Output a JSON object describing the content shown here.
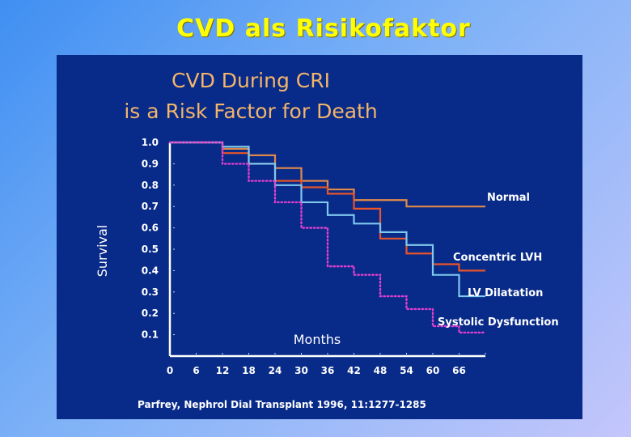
{
  "slide": {
    "title": "CVD als Risikofaktor"
  },
  "chart_data": {
    "type": "line",
    "title_lines": [
      "CVD During CRI",
      "is a Risk Factor for Death"
    ],
    "xlabel": "Months",
    "ylabel": "Survival",
    "x_ticks": [
      0,
      6,
      12,
      18,
      24,
      30,
      36,
      42,
      48,
      54,
      60,
      66
    ],
    "y_ticks": [
      "1.0",
      "0.9",
      "0.8",
      "0.7",
      "0.6",
      "0.5",
      "0.4",
      "0.3",
      "0.2",
      "0.1"
    ],
    "xlim": [
      0,
      72
    ],
    "ylim": [
      0,
      1.0
    ],
    "grid": false,
    "source": "Parfrey, Nephrol Dial Transplant 1996, 11:1277-1285",
    "series": [
      {
        "name": "Normal",
        "color": "#e08a4a",
        "style": "solid",
        "x": [
          0,
          12,
          18,
          24,
          30,
          36,
          42,
          54,
          72
        ],
        "y": [
          1.0,
          0.97,
          0.94,
          0.88,
          0.82,
          0.78,
          0.73,
          0.7,
          0.7
        ]
      },
      {
        "name": "Concentric LVH",
        "color": "#e8552a",
        "style": "solid",
        "x": [
          0,
          12,
          18,
          24,
          30,
          36,
          42,
          48,
          54,
          60,
          66,
          72
        ],
        "y": [
          1.0,
          0.95,
          0.9,
          0.82,
          0.79,
          0.76,
          0.69,
          0.55,
          0.48,
          0.43,
          0.4,
          0.4
        ]
      },
      {
        "name": "LV Dilatation",
        "color": "#7fc8ee",
        "style": "solid",
        "x": [
          0,
          12,
          18,
          24,
          30,
          36,
          42,
          48,
          54,
          60,
          66,
          72
        ],
        "y": [
          1.0,
          0.98,
          0.9,
          0.8,
          0.72,
          0.66,
          0.62,
          0.58,
          0.52,
          0.38,
          0.28,
          0.28
        ]
      },
      {
        "name": "Systolic Dysfunction",
        "color": "#e040d0",
        "style": "dotted",
        "x": [
          0,
          12,
          18,
          24,
          30,
          36,
          42,
          48,
          54,
          60,
          66,
          72
        ],
        "y": [
          1.0,
          0.9,
          0.82,
          0.72,
          0.6,
          0.42,
          0.38,
          0.28,
          0.22,
          0.14,
          0.11,
          0.11
        ]
      }
    ]
  }
}
